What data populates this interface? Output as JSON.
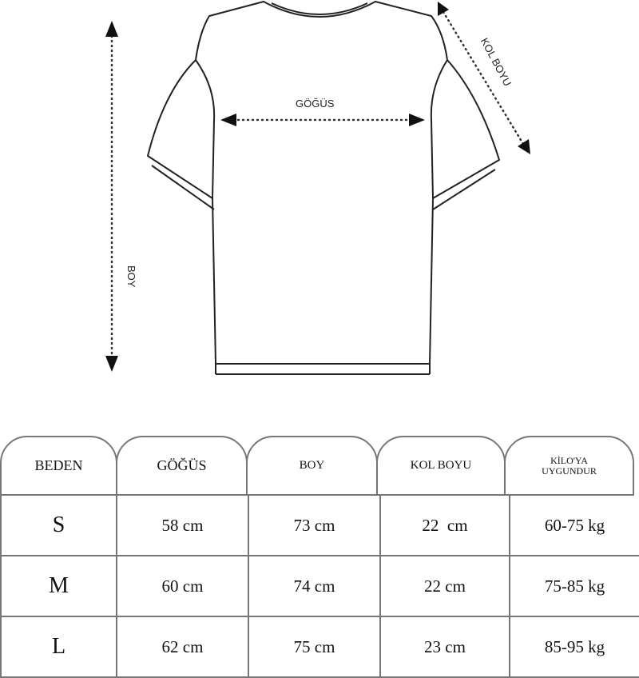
{
  "diagram": {
    "labels": {
      "chest": "GÖĞÜS",
      "length": "BOY",
      "sleeve": "KOL BOYU"
    }
  },
  "table": {
    "headers": [
      "BEDEN",
      "GÖĞÜS",
      "BOY",
      "KOL BOYU",
      "KİLO'YA UYGUNDUR"
    ],
    "header_last_lines": [
      "KİLO'YA",
      "UYGUNDUR"
    ],
    "rows": [
      [
        "S",
        "58 cm",
        "73 cm",
        "22  cm",
        "60-75 kg"
      ],
      [
        "M",
        "60 cm",
        "74 cm",
        "22 cm",
        "75-85 kg"
      ],
      [
        "L",
        "62 cm",
        "75 cm",
        "23 cm",
        "85-95 kg"
      ]
    ]
  }
}
